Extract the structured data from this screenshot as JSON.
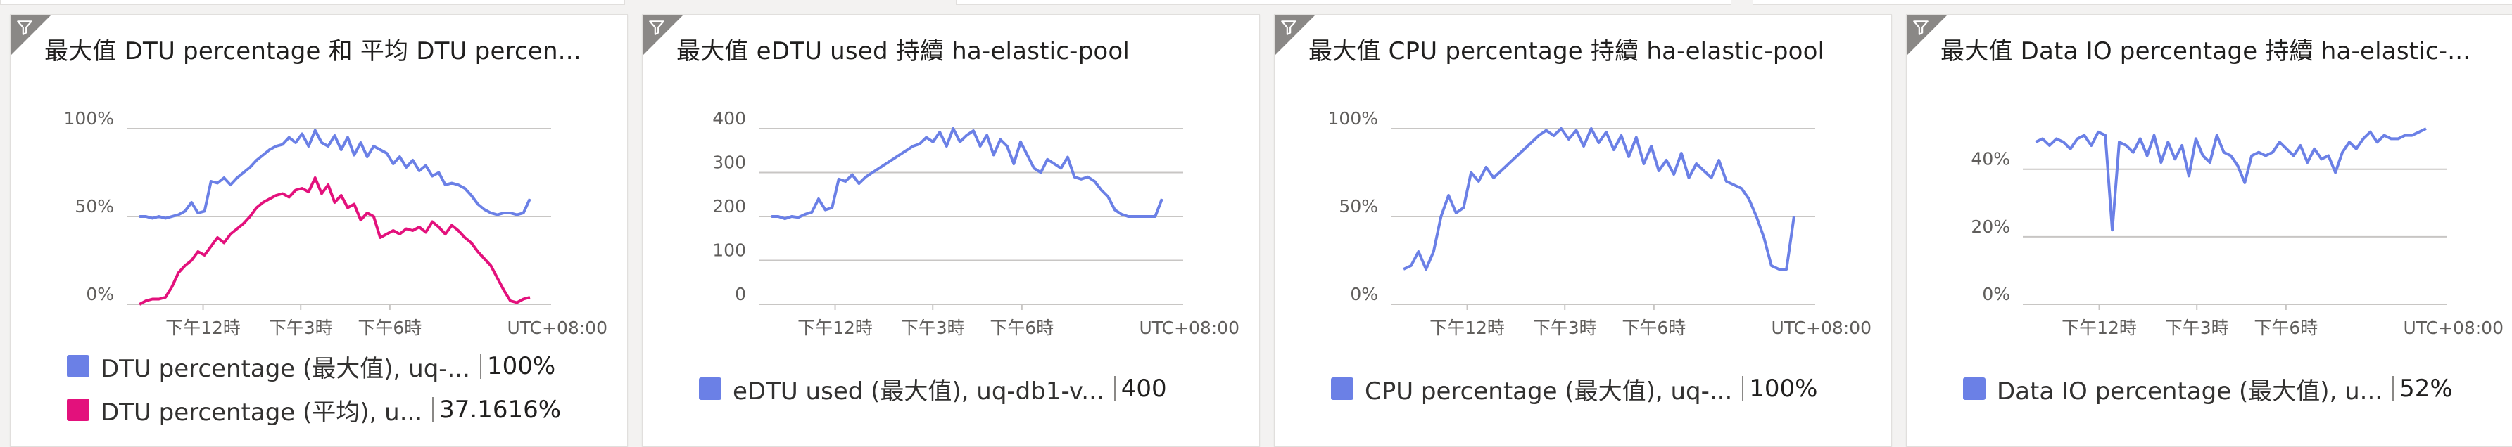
{
  "tiles": [
    {
      "title": "最大值 DTU percentage 和 平均 DTU percen...",
      "filter_icon": "funnel-icon",
      "chart_data": {
        "type": "line",
        "x_ticks": [
          "下午12時",
          "下午3時",
          "下午6時"
        ],
        "timezone": "UTC+08:00",
        "y_ticks": [
          "100%",
          "50%",
          "0%"
        ],
        "ylim": [
          0,
          100
        ],
        "grid": true,
        "series": [
          {
            "name": "DTU percentage (最大值), uq-...",
            "color": "#6b80e6",
            "values": [
              50,
              50,
              49,
              50,
              49,
              50,
              51,
              53,
              58,
              52,
              53,
              70,
              69,
              72,
              68,
              72,
              75,
              78,
              82,
              85,
              88,
              90,
              91,
              95,
              92,
              97,
              90,
              99,
              92,
              90,
              96,
              88,
              95,
              85,
              92,
              84,
              90,
              88,
              86,
              80,
              84,
              78,
              82,
              76,
              79,
              73,
              75,
              68,
              69,
              68,
              66,
              62,
              57,
              54,
              52,
              51,
              52,
              52,
              51,
              52,
              60
            ]
          },
          {
            "name": "DTU percentage (平均), u...",
            "color": "#e3117c",
            "values": [
              0,
              2,
              3,
              3,
              4,
              10,
              18,
              22,
              25,
              30,
              28,
              33,
              38,
              35,
              40,
              43,
              46,
              50,
              55,
              58,
              60,
              62,
              63,
              61,
              65,
              66,
              64,
              72,
              63,
              68,
              58,
              62,
              55,
              57,
              48,
              52,
              50,
              38,
              40,
              42,
              40,
              43,
              42,
              44,
              41,
              47,
              44,
              40,
              45,
              42,
              38,
              35,
              30,
              26,
              22,
              15,
              8,
              2,
              1,
              3,
              4
            ]
          }
        ]
      },
      "legend": [
        {
          "label": "DTU percentage (最大值), uq-...",
          "value": "100%",
          "color": "#6b80e6"
        },
        {
          "label": "DTU percentage (平均), u...",
          "value": "37.1616%",
          "color": "#e3117c"
        }
      ]
    },
    {
      "title": "最大值 eDTU used 持續 ha-elastic-pool",
      "filter_icon": "funnel-icon",
      "chart_data": {
        "type": "line",
        "x_ticks": [
          "下午12時",
          "下午3時",
          "下午6時"
        ],
        "timezone": "UTC+08:00",
        "y_ticks": [
          "400",
          "300",
          "200",
          "100",
          "0"
        ],
        "ylim": [
          0,
          400
        ],
        "grid": true,
        "series": [
          {
            "name": "eDTU used (最大值), uq-db1-v...",
            "color": "#6b80e6",
            "values": [
              200,
              200,
              195,
              200,
              198,
              205,
              210,
              240,
              215,
              220,
              285,
              280,
              295,
              275,
              290,
              300,
              310,
              320,
              330,
              340,
              350,
              360,
              365,
              380,
              370,
              392,
              360,
              400,
              370,
              385,
              395,
              360,
              385,
              340,
              375,
              360,
              320,
              370,
              340,
              310,
              300,
              330,
              320,
              310,
              335,
              290,
              285,
              290,
              280,
              260,
              245,
              215,
              205,
              200,
              200,
              200,
              200,
              200,
              240
            ]
          }
        ]
      },
      "legend": [
        {
          "label": "eDTU used (最大值), uq-db1-v...",
          "value": "400",
          "color": "#6b80e6"
        }
      ]
    },
    {
      "title": "最大值 CPU percentage 持續 ha-elastic-pool",
      "filter_icon": "funnel-icon",
      "chart_data": {
        "type": "line",
        "x_ticks": [
          "下午12時",
          "下午3時",
          "下午6時"
        ],
        "timezone": "UTC+08:00",
        "y_ticks": [
          "100%",
          "50%",
          "0%"
        ],
        "ylim": [
          0,
          100
        ],
        "grid": true,
        "series": [
          {
            "name": "CPU percentage (最大值), uq-...",
            "color": "#6b80e6",
            "values": [
              20,
              22,
              30,
              20,
              30,
              50,
              62,
              52,
              55,
              75,
              70,
              78,
              72,
              76,
              80,
              84,
              88,
              92,
              96,
              99,
              96,
              100,
              94,
              99,
              90,
              100,
              92,
              98,
              88,
              96,
              84,
              95,
              80,
              90,
              76,
              82,
              74,
              86,
              72,
              80,
              76,
              72,
              82,
              70,
              68,
              66,
              60,
              50,
              38,
              22,
              20,
              20,
              50
            ]
          }
        ]
      },
      "legend": [
        {
          "label": "CPU percentage (最大值), uq-...",
          "value": "100%",
          "color": "#6b80e6"
        }
      ]
    },
    {
      "title": "最大值 Data IO percentage 持續 ha-elastic-...",
      "filter_icon": "funnel-icon",
      "chart_data": {
        "type": "line",
        "x_ticks": [
          "下午12時",
          "下午3時",
          "下午6時"
        ],
        "timezone": "UTC+08:00",
        "y_ticks": [
          "40%",
          "20%",
          "0%"
        ],
        "ylim": [
          0,
          52
        ],
        "grid": true,
        "series": [
          {
            "name": "Data IO percentage (最大值), u...",
            "color": "#6b80e6",
            "values": [
              48,
              49,
              47,
              49,
              48,
              46,
              49,
              50,
              47,
              51,
              50,
              22,
              48,
              47,
              45,
              49,
              44,
              50,
              42,
              48,
              43,
              47,
              38,
              49,
              44,
              42,
              50,
              45,
              44,
              41,
              36,
              44,
              45,
              44,
              45,
              48,
              46,
              44,
              47,
              42,
              46,
              43,
              44,
              39,
              45,
              48,
              46,
              49,
              51,
              48,
              50,
              49,
              49,
              50,
              50,
              51,
              52
            ]
          }
        ]
      },
      "legend": [
        {
          "label": "Data IO percentage (最大值), u...",
          "value": "52%",
          "color": "#6b80e6"
        }
      ]
    }
  ]
}
